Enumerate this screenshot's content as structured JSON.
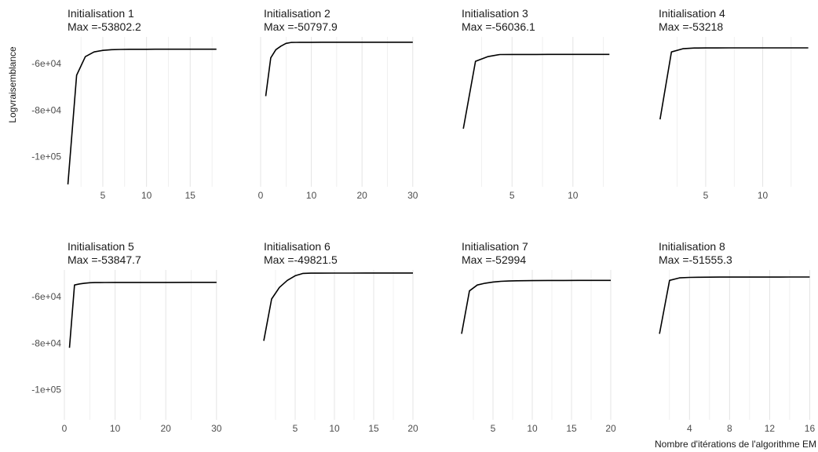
{
  "chart_data": {
    "type": "line",
    "ylabel": "Logvraisemblance",
    "xlabel": "Nombre d'itérations de l'algorithme EM",
    "ylim": [
      -113000,
      -48500
    ],
    "y_ticks": [
      -60000,
      -80000,
      -100000
    ],
    "y_tick_labels": [
      "-6e+04",
      "-8e+04",
      "-1e+05"
    ],
    "grid": "vertical",
    "line_color": "#000000",
    "grid_color": "#e6e6e6",
    "panels": [
      {
        "title": "Initialisation 1",
        "subtitle": "Max =-53802.2",
        "xlim": [
          0.6,
          18.3
        ],
        "x_ticks": [
          5,
          10,
          15
        ],
        "x_minor": [
          2.5,
          7.5,
          12.5,
          17.5
        ],
        "x": [
          1,
          2,
          3,
          4,
          5,
          6,
          7,
          8,
          9,
          10,
          11,
          12,
          13,
          14,
          15,
          16,
          17,
          18
        ],
        "y": [
          -112000,
          -65000,
          -57000,
          -55000,
          -54300,
          -54000,
          -53900,
          -53850,
          -53830,
          -53820,
          -53815,
          -53810,
          -53808,
          -53806,
          -53805,
          -53804,
          -53803,
          -53802.2
        ]
      },
      {
        "title": "Initialisation 2",
        "subtitle": "Max =-50797.9",
        "xlim": [
          0,
          30.5
        ],
        "x_ticks": [
          0,
          10,
          20,
          30
        ],
        "x_minor": [
          5,
          15,
          25
        ],
        "x": [
          1,
          2,
          3,
          4,
          5,
          6,
          7,
          8,
          10,
          12,
          15,
          20,
          25,
          30
        ],
        "y": [
          -74000,
          -57500,
          -54000,
          -52500,
          -51300,
          -50900,
          -50850,
          -50830,
          -50815,
          -50810,
          -50805,
          -50800,
          -50799,
          -50797.9
        ]
      },
      {
        "title": "Initialisation 3",
        "subtitle": "Max =-56036.1",
        "xlim": [
          0.6,
          13.3
        ],
        "x_ticks": [
          5,
          10
        ],
        "x_minor": [
          2.5,
          7.5,
          12.5
        ],
        "x": [
          1,
          2,
          3,
          4,
          5,
          6,
          7,
          8,
          9,
          10,
          11,
          12,
          13
        ],
        "y": [
          -88000,
          -59000,
          -57000,
          -56100,
          -56070,
          -56060,
          -56050,
          -56045,
          -56040,
          -56039,
          -56038,
          -56037,
          -56036.1
        ]
      },
      {
        "title": "Initialisation 4",
        "subtitle": "Max =-53218",
        "xlim": [
          0.6,
          14.3
        ],
        "x_ticks": [
          5,
          10
        ],
        "x_minor": [
          2.5,
          7.5,
          12.5
        ],
        "x": [
          1,
          2,
          3,
          4,
          5,
          6,
          7,
          8,
          9,
          10,
          11,
          12,
          13,
          14
        ],
        "y": [
          -84000,
          -55000,
          -53600,
          -53300,
          -53260,
          -53245,
          -53235,
          -53230,
          -53226,
          -53223,
          -53221,
          -53220,
          -53219,
          -53218
        ]
      },
      {
        "title": "Initialisation 5",
        "subtitle": "Max =-53847.7",
        "xlim": [
          0,
          30.5
        ],
        "x_ticks": [
          0,
          10,
          20,
          30
        ],
        "x_minor": [
          5,
          15,
          25
        ],
        "x": [
          1,
          2,
          3,
          4,
          5,
          6,
          8,
          10,
          15,
          20,
          25,
          30
        ],
        "y": [
          -82000,
          -55000,
          -54500,
          -54200,
          -54000,
          -53950,
          -53900,
          -53880,
          -53860,
          -53855,
          -53850,
          -53847.7
        ]
      },
      {
        "title": "Initialisation 6",
        "subtitle": "Max =-49821.5",
        "xlim": [
          0.6,
          20.3
        ],
        "x_ticks": [
          5,
          10,
          15,
          20
        ],
        "x_minor": [
          2.5,
          7.5,
          12.5,
          17.5
        ],
        "x": [
          1,
          2,
          3,
          4,
          5,
          6,
          7,
          8,
          10,
          12,
          14,
          16,
          18,
          20
        ],
        "y": [
          -79000,
          -61000,
          -56000,
          -53000,
          -51000,
          -50000,
          -49900,
          -49870,
          -49850,
          -49840,
          -49832,
          -49827,
          -49824,
          -49821.5
        ]
      },
      {
        "title": "Initialisation 7",
        "subtitle": "Max =-52994",
        "xlim": [
          0.6,
          20.3
        ],
        "x_ticks": [
          5,
          10,
          15,
          20
        ],
        "x_minor": [
          2.5,
          7.5,
          12.5,
          17.5
        ],
        "x": [
          1,
          2,
          3,
          4,
          5,
          6,
          7,
          8,
          10,
          12,
          14,
          16,
          18,
          20
        ],
        "y": [
          -76000,
          -57500,
          -55000,
          -54200,
          -53700,
          -53400,
          -53250,
          -53150,
          -53080,
          -53040,
          -53020,
          -53005,
          -52998,
          -52994
        ]
      },
      {
        "title": "Initialisation 8",
        "subtitle": "Max =-51555.3",
        "xlim": [
          0.6,
          16.2
        ],
        "x_ticks": [
          4,
          8,
          12,
          16
        ],
        "x_minor": [
          2,
          6,
          10,
          14
        ],
        "x": [
          1,
          2,
          3,
          4,
          5,
          6,
          7,
          8,
          9,
          10,
          11,
          12,
          13,
          14,
          15,
          16
        ],
        "y": [
          -76000,
          -53000,
          -51900,
          -51700,
          -51630,
          -51600,
          -51585,
          -51575,
          -51568,
          -51563,
          -51560,
          -51558,
          -51557,
          -51556,
          -51555.8,
          -51555.3
        ]
      }
    ]
  }
}
